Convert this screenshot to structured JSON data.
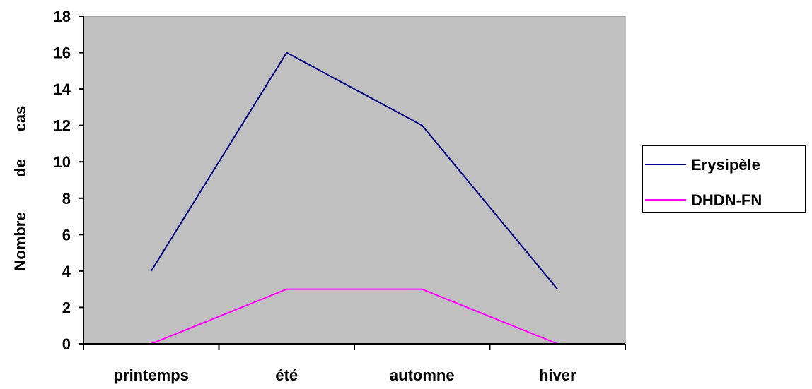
{
  "chart_data": {
    "type": "line",
    "title": "",
    "xlabel": "",
    "ylabel": "Nombre de cas",
    "ylabel_words": [
      "Nombre",
      "de",
      "cas"
    ],
    "categories": [
      "printemps",
      "été",
      "automne",
      "hiver"
    ],
    "ylim": [
      0,
      18
    ],
    "yticks": [
      0,
      2,
      4,
      6,
      8,
      10,
      12,
      14,
      16,
      18
    ],
    "series": [
      {
        "name": "Erysipèle",
        "values": [
          4,
          16,
          12,
          3
        ],
        "color": "#000080"
      },
      {
        "name": "DHDN-FN",
        "values": [
          0,
          3,
          3,
          0
        ],
        "color": "#ff00ff"
      }
    ],
    "plot_background": "#c0c0c0",
    "grid": false,
    "legend_position": "right"
  }
}
